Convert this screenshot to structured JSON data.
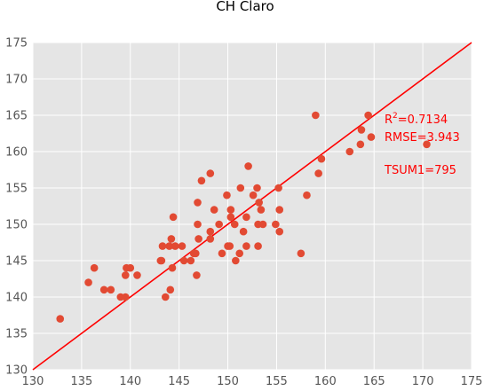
{
  "chart_data": {
    "type": "scatter",
    "title": "CH Claro",
    "xlabel": "",
    "ylabel": "",
    "xlim": [
      130,
      175
    ],
    "ylim": [
      130,
      175
    ],
    "xticks": [
      130,
      135,
      140,
      145,
      150,
      155,
      160,
      165,
      170,
      175
    ],
    "yticks": [
      130,
      135,
      140,
      145,
      150,
      155,
      160,
      165,
      170,
      175
    ],
    "grid": true,
    "point_color": "#e24a33",
    "line_color": "#ff0000",
    "background_color": "#e5e5e5",
    "reference_line": {
      "x": [
        130,
        175
      ],
      "y": [
        130,
        175
      ]
    },
    "annotations": {
      "r2_prefix": "R",
      "r2_sup": "2",
      "r2_value": "=0.7134",
      "rmse": "RMSE=3.943",
      "tsum": "TSUM1=795"
    },
    "points": [
      [
        132.8,
        137
      ],
      [
        135.7,
        142
      ],
      [
        136.3,
        144
      ],
      [
        137.3,
        141
      ],
      [
        138.0,
        141
      ],
      [
        139.0,
        140
      ],
      [
        139.5,
        140
      ],
      [
        139.5,
        143
      ],
      [
        139.6,
        144
      ],
      [
        140.0,
        144
      ],
      [
        140.7,
        143
      ],
      [
        143.1,
        145
      ],
      [
        143.2,
        145
      ],
      [
        143.3,
        147
      ],
      [
        143.6,
        140
      ],
      [
        144.0,
        147
      ],
      [
        144.1,
        141
      ],
      [
        144.2,
        148
      ],
      [
        144.3,
        144
      ],
      [
        144.4,
        151
      ],
      [
        144.6,
        147
      ],
      [
        145.3,
        147
      ],
      [
        145.5,
        145
      ],
      [
        146.2,
        145
      ],
      [
        146.5,
        146
      ],
      [
        146.7,
        146
      ],
      [
        146.8,
        143
      ],
      [
        146.9,
        153
      ],
      [
        146.9,
        150
      ],
      [
        147.0,
        148
      ],
      [
        147.3,
        156
      ],
      [
        148.2,
        157
      ],
      [
        148.2,
        149
      ],
      [
        148.2,
        148
      ],
      [
        148.6,
        152
      ],
      [
        149.1,
        150
      ],
      [
        149.4,
        146
      ],
      [
        149.9,
        154
      ],
      [
        150.0,
        147
      ],
      [
        150.2,
        147
      ],
      [
        150.3,
        151
      ],
      [
        150.3,
        152
      ],
      [
        150.7,
        150
      ],
      [
        150.8,
        145
      ],
      [
        151.2,
        146
      ],
      [
        151.3,
        155
      ],
      [
        151.6,
        149
      ],
      [
        151.9,
        147
      ],
      [
        151.9,
        151
      ],
      [
        152.1,
        158
      ],
      [
        152.6,
        154
      ],
      [
        153.0,
        155
      ],
      [
        153.1,
        147
      ],
      [
        153.1,
        150
      ],
      [
        153.2,
        153
      ],
      [
        153.4,
        152
      ],
      [
        153.6,
        150
      ],
      [
        154.9,
        150
      ],
      [
        155.2,
        155
      ],
      [
        155.3,
        149
      ],
      [
        155.3,
        152
      ],
      [
        157.5,
        146
      ],
      [
        158.1,
        154
      ],
      [
        159.0,
        165
      ],
      [
        159.3,
        157
      ],
      [
        159.6,
        159
      ],
      [
        162.5,
        160
      ],
      [
        163.6,
        161
      ],
      [
        163.7,
        163
      ],
      [
        164.4,
        165
      ],
      [
        164.7,
        162
      ],
      [
        170.4,
        161
      ]
    ]
  }
}
